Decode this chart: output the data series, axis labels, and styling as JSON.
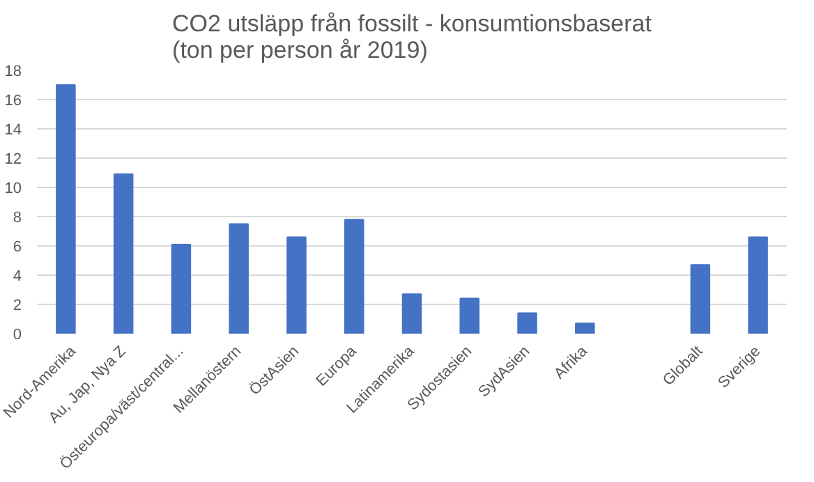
{
  "chart_data": {
    "type": "bar",
    "title": "CO2 utsläpp från fossilt - konsumtionsbaserat\n(ton per person år 2019)",
    "categories": [
      "Nord-Amerika",
      "Au, Jap, Nya Z",
      "Östeuropa/väst/central...",
      "Mellanöstern",
      "ÖstAsien",
      "Europa",
      "Latinamerika",
      "Sydostasien",
      "SydAsien",
      "Afrika",
      null,
      "Globalt",
      "Sverige"
    ],
    "values": [
      17,
      10.9,
      6.1,
      7.5,
      6.6,
      7.8,
      2.7,
      2.4,
      1.4,
      0.7,
      null,
      4.7,
      6.6
    ],
    "color": "#4472c4",
    "ylim": [
      0,
      18
    ],
    "yticks": [
      0,
      2,
      4,
      6,
      8,
      10,
      12,
      14,
      16,
      18
    ],
    "grid": "y"
  }
}
